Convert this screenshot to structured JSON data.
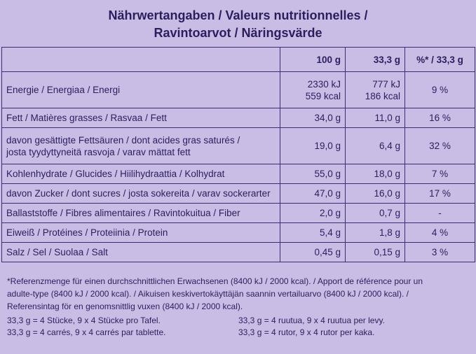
{
  "title": {
    "line1": "Nährwertangaben / Valeurs nutritionnelles /",
    "line2": "Ravintoarvot / Näringsvärde"
  },
  "header": {
    "col1": "",
    "col2": "100 g",
    "col3": "33,3 g",
    "col4": "%* / 33,3 g"
  },
  "rows": [
    {
      "label": [
        "Energie / Energiaa / Energi"
      ],
      "per100": [
        "2330 kJ",
        "559 kcal"
      ],
      "per33": [
        "777 kJ",
        "186 kcal"
      ],
      "pct": "9 %"
    },
    {
      "label": [
        "Fett / Matières grasses / Rasvaa / Fett"
      ],
      "per100": [
        "34,0 g"
      ],
      "per33": [
        "11,0 g"
      ],
      "pct": "16 %"
    },
    {
      "label": [
        "davon gesättigte Fettsäuren / dont acides gras saturés /",
        "josta tyydyttyneitä rasvoja / varav mättat fett"
      ],
      "per100": [
        "19,0 g"
      ],
      "per33": [
        "6,4 g"
      ],
      "pct": "32 %"
    },
    {
      "label": [
        "Kohlenhydrate / Glucides / Hiilihydraattia / Kolhydrat"
      ],
      "per100": [
        "55,0 g"
      ],
      "per33": [
        "18,0 g"
      ],
      "pct": "7 %"
    },
    {
      "label": [
        "davon Zucker / dont sucres / josta sokereita / varav sockerarter"
      ],
      "per100": [
        "47,0 g"
      ],
      "per33": [
        "16,0 g"
      ],
      "pct": "17 %"
    },
    {
      "label": [
        "Ballaststoffe / Fibres alimentaires / Ravintokuitua / Fiber"
      ],
      "per100": [
        "2,0 g"
      ],
      "per33": [
        "0,7 g"
      ],
      "pct": "-"
    },
    {
      "label": [
        "Eiweiß / Protéines / Proteiinia / Protein"
      ],
      "per100": [
        "5,4 g"
      ],
      "per33": [
        "1,8 g"
      ],
      "pct": "4 %"
    },
    {
      "label": [
        "Salz / Sel / Suolaa / Salt"
      ],
      "per100": [
        "0,45 g"
      ],
      "per33": [
        "0,15 g"
      ],
      "pct": "3 %"
    }
  ],
  "footnote": [
    "*Referenzmenge für einen durchschnittlichen Erwachsenen (8400 kJ / 2000 kcal). / Apport de référence pour un",
    "adulte-type (8400 kJ / 2000 kcal). / Aikuisen keskivertokäyttäjän saannin vertailuarvo (8400 kJ / 2000 kcal). /",
    "Referensintag för en genomsnittlig vuxen (8400 kJ / 2000 kcal)."
  ],
  "portions": {
    "left": [
      "33,3 g = 4 Stücke, 9 x 4 Stücke pro Tafel.",
      "33,3 g = 4 carrés, 9 x 4 carrés par tablette."
    ],
    "right": [
      "33,3 g = 4 ruutua, 9 x 4 ruutua per levy.",
      "33,3 g = 4 rutor, 9 x 4 rutor per kaka."
    ]
  }
}
